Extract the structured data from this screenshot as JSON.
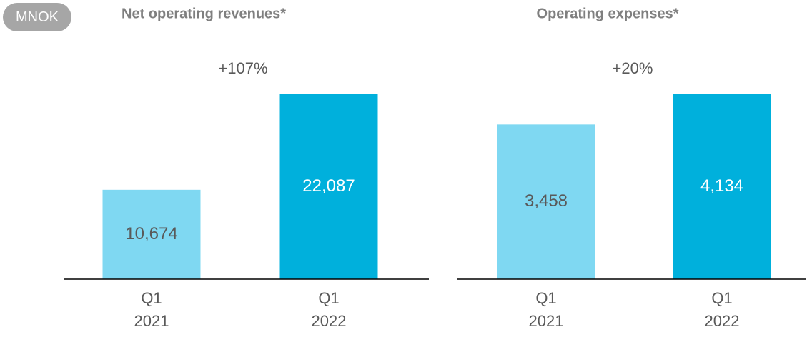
{
  "unit": "MNOK",
  "chart_data": [
    {
      "type": "bar",
      "title": "Net operating revenues*",
      "annotation": "+107%",
      "categories": [
        "Q1 2021",
        "Q1 2022"
      ],
      "values": [
        10674,
        22087
      ],
      "value_labels": [
        "10,674",
        "22,087"
      ],
      "colors": [
        "#7fd8f2",
        "#00b0dc"
      ],
      "label_colors": [
        "#595959",
        "#ffffff"
      ]
    },
    {
      "type": "bar",
      "title": "Operating expenses*",
      "annotation": "+20%",
      "categories": [
        "Q1 2021",
        "Q1 2022"
      ],
      "values": [
        3458,
        4134
      ],
      "value_labels": [
        "3,458",
        "4,134"
      ],
      "colors": [
        "#7fd8f2",
        "#00b0dc"
      ],
      "label_colors": [
        "#595959",
        "#ffffff"
      ]
    }
  ]
}
